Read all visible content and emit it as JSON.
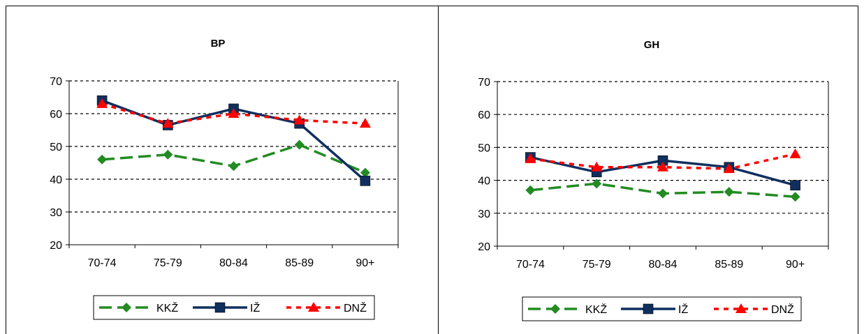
{
  "chart_data": [
    {
      "type": "line",
      "title": "BP",
      "categories": [
        "70-74",
        "75-79",
        "80-84",
        "85-89",
        "90+"
      ],
      "ylim": [
        20,
        70
      ],
      "yticks": [
        20,
        30,
        40,
        50,
        60,
        70
      ],
      "grid": "horizontal dashed",
      "legend_position": "bottom",
      "series": [
        {
          "name": "KKŽ",
          "color": "#228B22",
          "dash": "long-dash",
          "marker": "diamond",
          "values": [
            46,
            47.5,
            44,
            50.5,
            42
          ]
        },
        {
          "name": "IŽ",
          "color": "#0F2F5F",
          "dash": "solid",
          "marker": "square",
          "values": [
            64,
            56.5,
            61.5,
            57,
            39.5
          ]
        },
        {
          "name": "DNŽ",
          "color": "#FF0000",
          "dash": "short-dash",
          "marker": "triangle",
          "values": [
            63,
            57,
            60,
            58,
            57
          ]
        }
      ]
    },
    {
      "type": "line",
      "title": "GH",
      "categories": [
        "70-74",
        "75-79",
        "80-84",
        "85-89",
        "90+"
      ],
      "ylim": [
        20,
        70
      ],
      "yticks": [
        20,
        30,
        40,
        50,
        60,
        70
      ],
      "grid": "horizontal dashed",
      "legend_position": "bottom",
      "series": [
        {
          "name": "KKŽ",
          "color": "#228B22",
          "dash": "long-dash",
          "marker": "diamond",
          "values": [
            37,
            39,
            36,
            36.5,
            35
          ]
        },
        {
          "name": "IŽ",
          "color": "#0F2F5F",
          "dash": "solid",
          "marker": "square",
          "values": [
            47,
            42.5,
            46,
            44,
            38.5
          ]
        },
        {
          "name": "DNŽ",
          "color": "#FF0000",
          "dash": "short-dash",
          "marker": "triangle",
          "values": [
            46.5,
            44,
            44,
            43.5,
            48
          ]
        }
      ]
    }
  ]
}
